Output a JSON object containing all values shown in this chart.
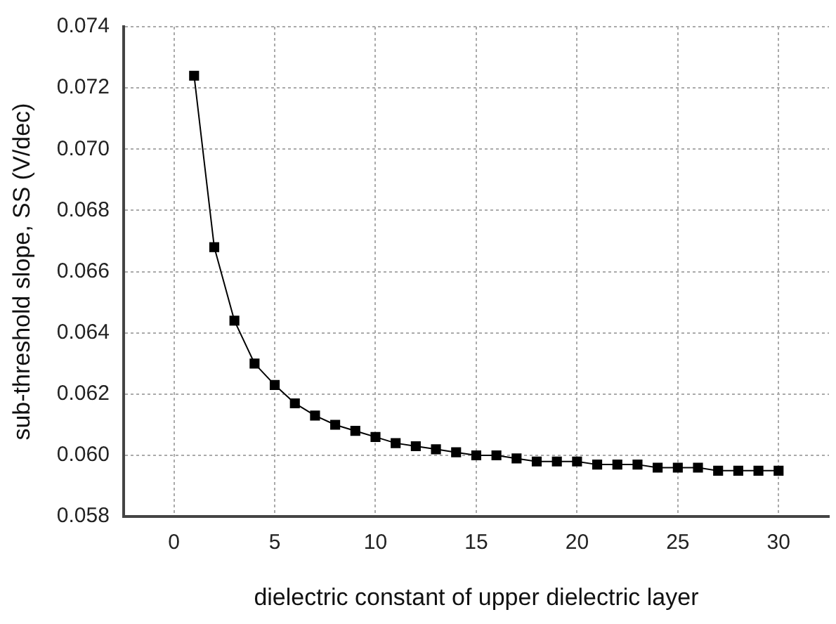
{
  "chart_data": {
    "type": "line",
    "xlabel": "dielectric constant of upper dielectric layer",
    "ylabel": "sub-threshold slope, SS (V/dec)",
    "x": [
      1,
      2,
      3,
      4,
      5,
      6,
      7,
      8,
      9,
      10,
      11,
      12,
      13,
      14,
      15,
      16,
      17,
      18,
      19,
      20,
      21,
      22,
      23,
      24,
      25,
      26,
      27,
      28,
      29,
      30
    ],
    "series": [
      {
        "color": "#000000",
        "values": [
          0.0724,
          0.0668,
          0.0644,
          0.063,
          0.0623,
          0.0617,
          0.0613,
          0.061,
          0.0608,
          0.0606,
          0.0604,
          0.0603,
          0.0602,
          0.0601,
          0.06,
          0.06,
          0.0599,
          0.0598,
          0.0598,
          0.0598,
          0.0597,
          0.0597,
          0.0597,
          0.0596,
          0.0596,
          0.0596,
          0.0595,
          0.0595,
          0.0595,
          0.0595
        ]
      }
    ],
    "xlim": [
      -2.5,
      32.5
    ],
    "xticks": [
      0,
      5,
      10,
      15,
      20,
      25,
      30
    ],
    "ylim": [
      0.058,
      0.074
    ],
    "yticks": [
      0.058,
      {
        "value": 0.06,
        "label": "0.060"
      },
      0.062,
      0.064,
      0.066,
      0.068,
      {
        "value": 0.07,
        "label": "0.070"
      },
      0.072,
      0.074
    ],
    "grid": true,
    "legend": false,
    "marker": "square",
    "line_style": "solid"
  }
}
